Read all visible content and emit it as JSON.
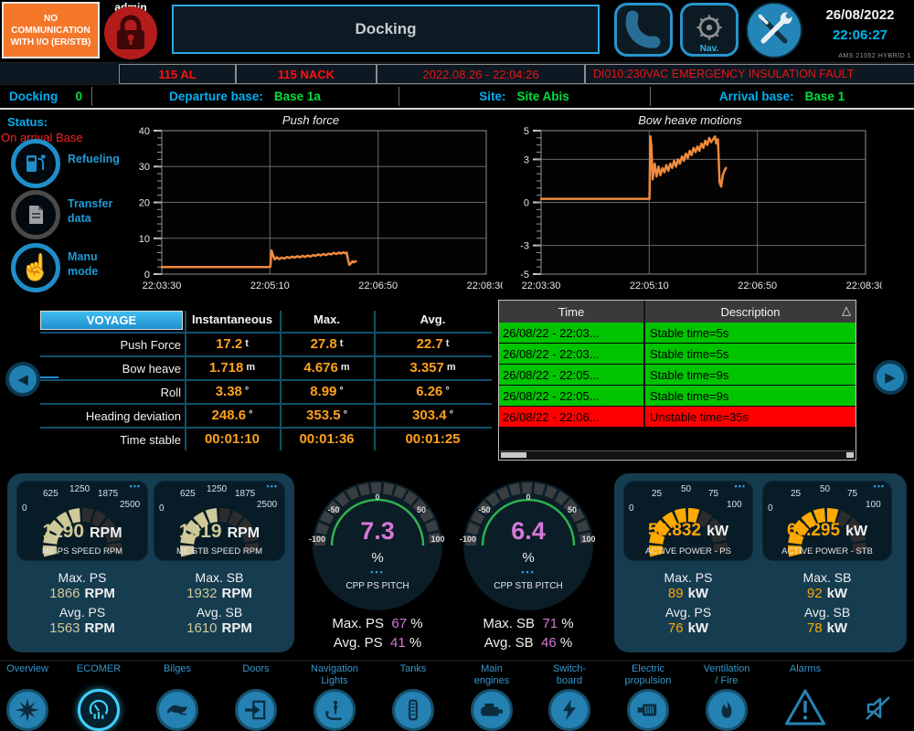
{
  "header": {
    "comm_alert": "NO COMMUNICATION WITH I/O (ER/STB)",
    "user": "admin",
    "page_title": "Docking",
    "nav_label": "Nav.",
    "date": "26/08/2022",
    "time": "22:06:27",
    "system_id": "AMS 21052 HYBRID 1"
  },
  "alarm_bar": {
    "al_count": "115 AL",
    "nack_count": "115 NACK",
    "timestamp": "2022.08.26 - 22:04:26",
    "message": "DI010:230VAC EMERGENCY INSULATION FAULT"
  },
  "info_bar": {
    "docking_label": "Docking",
    "docking_value": "0",
    "departure_label": "Departure base:",
    "departure_value": "Base 1a",
    "site_label": "Site:",
    "site_value": "Site Abis",
    "arrival_label": "Arrival base:",
    "arrival_value": "Base 1"
  },
  "sidebar": {
    "status_label": "Status:",
    "status_value": "On arrival Base",
    "buttons": [
      {
        "label": "Refueling",
        "icon": "fuel-pump-icon"
      },
      {
        "label": "Transfer data",
        "icon": "document-icon"
      },
      {
        "label": "Manu mode",
        "icon": "hand-pointer-icon"
      }
    ]
  },
  "chart_data": [
    {
      "type": "line",
      "title": "Push force",
      "ylim": [
        0,
        40
      ],
      "yticks": [
        "40",
        "30",
        "20",
        "10",
        "0"
      ],
      "xticks": [
        "22:03:30",
        "22:05:10",
        "22:06:50",
        "22:08:30"
      ],
      "grid": true,
      "line_color": "#f08a3c",
      "series": [
        {
          "name": "push_force_t",
          "points": [
            [
              0,
              2
            ],
            [
              0.33,
              2
            ],
            [
              0.335,
              2.1
            ],
            [
              0.338,
              6.6
            ],
            [
              0.343,
              5.2
            ],
            [
              0.348,
              4.1
            ],
            [
              0.355,
              4.7
            ],
            [
              0.362,
              4.2
            ],
            [
              0.37,
              4.6
            ],
            [
              0.378,
              4.3
            ],
            [
              0.386,
              4.8
            ],
            [
              0.394,
              4.5
            ],
            [
              0.402,
              4.9
            ],
            [
              0.41,
              4.6
            ],
            [
              0.418,
              5.0
            ],
            [
              0.426,
              4.7
            ],
            [
              0.434,
              5.1
            ],
            [
              0.442,
              4.8
            ],
            [
              0.45,
              5.2
            ],
            [
              0.458,
              4.9
            ],
            [
              0.466,
              5.3
            ],
            [
              0.474,
              5.1
            ],
            [
              0.482,
              5.5
            ],
            [
              0.49,
              5.2
            ],
            [
              0.498,
              5.6
            ],
            [
              0.506,
              5.3
            ],
            [
              0.514,
              5.7
            ],
            [
              0.522,
              5.5
            ],
            [
              0.53,
              5.9
            ],
            [
              0.538,
              5.6
            ],
            [
              0.546,
              6.0
            ],
            [
              0.553,
              5.7
            ],
            [
              0.56,
              6.1
            ],
            [
              0.565,
              5.8
            ],
            [
              0.57,
              6.0
            ],
            [
              0.574,
              4.0
            ],
            [
              0.578,
              2.6
            ],
            [
              0.583,
              3.0
            ],
            [
              0.588,
              3.6
            ],
            [
              0.593,
              3.3
            ],
            [
              0.598,
              3.6
            ]
          ]
        }
      ]
    },
    {
      "type": "line",
      "title": "Bow heave motions",
      "ylim": [
        -5,
        5
      ],
      "yticks": [
        "5",
        "3",
        "0",
        "-3",
        "-5"
      ],
      "xticks": [
        "22:03:30",
        "22:05:10",
        "22:06:50",
        "22:08:30"
      ],
      "grid": true,
      "line_color": "#f08a3c",
      "series": [
        {
          "name": "bow_heave_m",
          "points": [
            [
              0,
              0.25
            ],
            [
              0.334,
              0.25
            ],
            [
              0.337,
              4.6
            ],
            [
              0.34,
              3.9
            ],
            [
              0.344,
              1.6
            ],
            [
              0.35,
              2.7
            ],
            [
              0.356,
              1.8
            ],
            [
              0.362,
              2.5
            ],
            [
              0.368,
              1.9
            ],
            [
              0.374,
              2.4
            ],
            [
              0.38,
              2.1
            ],
            [
              0.386,
              2.6
            ],
            [
              0.392,
              2.2
            ],
            [
              0.398,
              2.7
            ],
            [
              0.404,
              2.4
            ],
            [
              0.41,
              2.9
            ],
            [
              0.416,
              2.5
            ],
            [
              0.422,
              3.0
            ],
            [
              0.428,
              2.7
            ],
            [
              0.434,
              3.2
            ],
            [
              0.44,
              2.9
            ],
            [
              0.446,
              3.4
            ],
            [
              0.452,
              3.1
            ],
            [
              0.458,
              3.6
            ],
            [
              0.464,
              3.3
            ],
            [
              0.47,
              3.8
            ],
            [
              0.476,
              3.5
            ],
            [
              0.482,
              3.9
            ],
            [
              0.488,
              3.6
            ],
            [
              0.494,
              4.1
            ],
            [
              0.5,
              3.8
            ],
            [
              0.506,
              4.3
            ],
            [
              0.512,
              4.0
            ],
            [
              0.518,
              4.5
            ],
            [
              0.524,
              4.2
            ],
            [
              0.53,
              4.4
            ],
            [
              0.536,
              4.6
            ],
            [
              0.54,
              4.1
            ],
            [
              0.545,
              4.4
            ],
            [
              0.55,
              1.4
            ],
            [
              0.555,
              1.1
            ],
            [
              0.56,
              1.9
            ],
            [
              0.565,
              2.2
            ],
            [
              0.57,
              2.4
            ]
          ]
        }
      ]
    }
  ],
  "voyage_table": {
    "corner_label": "VOYAGE",
    "columns": [
      "Instantaneous",
      "Max.",
      "Avg."
    ],
    "rows": [
      {
        "label": "Push Force",
        "inst": "17.2",
        "max": "27.8",
        "avg": "22.7",
        "unit": "t"
      },
      {
        "label": "Bow heave",
        "inst": "1.718",
        "max": "4.676",
        "avg": "3.357",
        "unit": "m"
      },
      {
        "label": "Roll",
        "inst": "3.38",
        "max": "8.99",
        "avg": "6.26",
        "unit": "°"
      },
      {
        "label": "Heading deviation",
        "inst": "248.6",
        "max": "353.5",
        "avg": "303.4",
        "unit": "°"
      },
      {
        "label": "Time stable",
        "inst": "00:01:10",
        "max": "00:01:36",
        "avg": "00:01:25",
        "unit": ""
      }
    ]
  },
  "event_table": {
    "columns": [
      "Time",
      "Description"
    ],
    "rows": [
      {
        "time": "26/08/22 - 22:03...",
        "description": "Stable time=5s",
        "state": "stable"
      },
      {
        "time": "26/08/22 - 22:03...",
        "description": "Stable time=5s",
        "state": "stable"
      },
      {
        "time": "26/08/22 - 22:05...",
        "description": "Stable time=9s",
        "state": "stable"
      },
      {
        "time": "26/08/22 - 22:05...",
        "description": "Stable time=9s",
        "state": "stable"
      },
      {
        "time": "26/08/22 - 22:06...",
        "description": "Unstable time=35s",
        "state": "unstable"
      }
    ]
  },
  "engine_panel": {
    "gauges": [
      {
        "value": "1190",
        "unit": "RPM",
        "label": "ME PS SPEED RPM",
        "ticks": [
          "0",
          "625",
          "1250",
          "1875",
          "2500"
        ]
      },
      {
        "value": "1319",
        "unit": "RPM",
        "label": "ME STB SPEED RPM",
        "ticks": [
          "0",
          "625",
          "1250",
          "1875",
          "2500"
        ]
      }
    ],
    "stats": [
      {
        "label": "Max. PS",
        "value": "1866",
        "unit": "RPM"
      },
      {
        "label": "Avg. PS",
        "value": "1563",
        "unit": "RPM"
      },
      {
        "label": "Max. SB",
        "value": "1932",
        "unit": "RPM"
      },
      {
        "label": "Avg. SB",
        "value": "1610",
        "unit": "RPM"
      }
    ]
  },
  "pitch_gauges": [
    {
      "value": "7.3",
      "unit": "%",
      "label": "CPP PS PITCH",
      "scale": [
        "-100",
        "-50",
        "0",
        "50",
        "100"
      ],
      "stats": [
        {
          "label": "Max. PS",
          "value": "67",
          "unit": "%"
        },
        {
          "label": "Avg. PS",
          "value": "41",
          "unit": "%"
        }
      ]
    },
    {
      "value": "6.4",
      "unit": "%",
      "label": "CPP STB PITCH",
      "scale": [
        "-100",
        "-50",
        "0",
        "50",
        "100"
      ],
      "stats": [
        {
          "label": "Max. SB",
          "value": "71",
          "unit": "%"
        },
        {
          "label": "Avg. SB",
          "value": "46",
          "unit": "%"
        }
      ]
    }
  ],
  "power_panel": {
    "gauges": [
      {
        "value": "58.832",
        "unit": "kW",
        "label": "ACTIVE POWER - PS",
        "ticks": [
          "0",
          "25",
          "50",
          "75",
          "100"
        ]
      },
      {
        "value": "60.295",
        "unit": "kW",
        "label": "ACTIVE POWER - STB",
        "ticks": [
          "0",
          "25",
          "50",
          "75",
          "100"
        ]
      }
    ],
    "stats": [
      {
        "label": "Max. PS",
        "value": "89",
        "unit": "kW"
      },
      {
        "label": "Avg. PS",
        "value": "76",
        "unit": "kW"
      },
      {
        "label": "Max. SB",
        "value": "92",
        "unit": "kW"
      },
      {
        "label": "Avg. SB",
        "value": "78",
        "unit": "kW"
      }
    ]
  },
  "bottom_nav": {
    "items": [
      {
        "label": "Overview",
        "icon": "compass-star-icon",
        "active": false
      },
      {
        "label": "ECOMER",
        "icon": "eco-gauge-icon",
        "active": true
      },
      {
        "label": "Bilges",
        "icon": "bilge-ray-icon",
        "active": false
      },
      {
        "label": "Doors",
        "icon": "door-arrow-icon",
        "active": false
      },
      {
        "label": "Navigation\nLights",
        "icon": "mast-light-icon",
        "active": false
      },
      {
        "label": "Tanks",
        "icon": "tank-level-icon",
        "active": false
      },
      {
        "label": "Main\nengines",
        "icon": "engine-icon",
        "active": false
      },
      {
        "label": "Switch-\nboard",
        "icon": "lightning-icon",
        "active": false
      },
      {
        "label": "Electric\npropulsion",
        "icon": "electric-motor-icon",
        "active": false
      },
      {
        "label": "Ventilation\n/ Fire",
        "icon": "flame-icon",
        "active": false
      },
      {
        "label": "Alarms",
        "icon": "warning-triangle-icon",
        "active": false
      },
      {
        "label": "",
        "icon": "muted-speaker-icon",
        "active": false
      }
    ]
  },
  "icons": {
    "prev_arrow": "◀",
    "next_arrow": "▶",
    "sort": "△",
    "menu_dots": "•••",
    "manu_hand": "☝"
  },
  "colors": {
    "accent_cyan": "#29a9e2",
    "label_cyan": "#00b0f0",
    "ok_green": "#00e03c",
    "alarm_red": "#ff1414",
    "value_orange": "#ffa11e",
    "line_orange": "#f08a3c",
    "khaki": "#cfc999",
    "violet": "#d678d8",
    "power_orange": "#ffaa00",
    "nav_blue": "#2481b2",
    "table_green": "#00c400",
    "table_red": "#ff0000"
  }
}
